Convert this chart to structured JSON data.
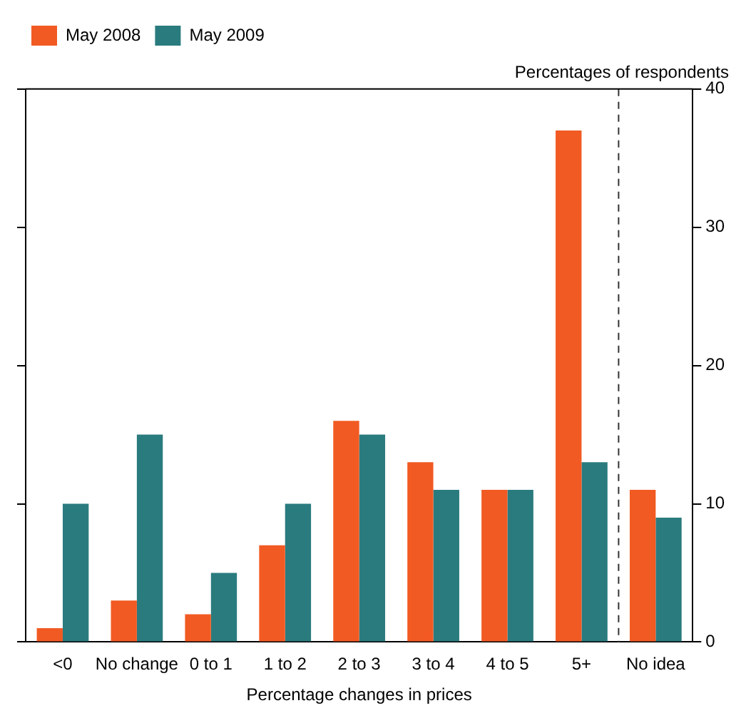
{
  "chart_data": {
    "type": "bar",
    "categories": [
      "<0",
      "No change",
      "0 to 1",
      "1 to 2",
      "2 to 3",
      "3 to 4",
      "4 to 5",
      "5+",
      "No idea"
    ],
    "series": [
      {
        "name": "May 2008",
        "color": "#f15a22",
        "values": [
          1,
          3,
          2,
          7,
          16,
          13,
          11,
          37,
          11
        ]
      },
      {
        "name": "May 2009",
        "color": "#2a7b7e",
        "values": [
          10,
          15,
          5,
          10,
          15,
          11,
          11,
          13,
          9
        ]
      }
    ],
    "xlabel": "Percentage changes in prices",
    "ylabel": "Percentages of respondents",
    "ylim": [
      0,
      40
    ],
    "yticks": [
      0,
      10,
      20,
      30,
      40
    ],
    "legend": "top left",
    "grid": false
  }
}
